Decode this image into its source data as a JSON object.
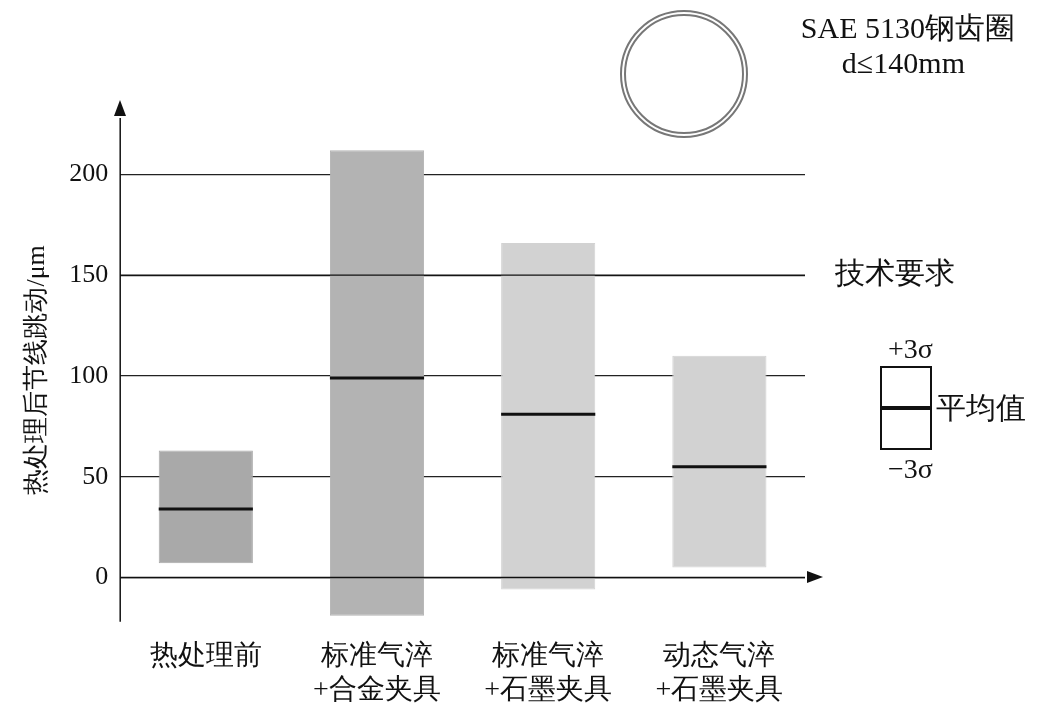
{
  "chart_data": {
    "type": "box",
    "ylabel": "热处理后节线跳动/μm",
    "categories": [
      "热处理前",
      "标准气淬\n+合金夹具",
      "标准气淬\n+石墨夹具",
      "动态气淬\n+石墨夹具"
    ],
    "boxes": [
      {
        "low": 7,
        "q1": 7,
        "median": 34,
        "q3": 63,
        "high": 63
      },
      {
        "low": -19,
        "q1": -19,
        "median": 99,
        "q3": 212,
        "high": 212
      },
      {
        "low": -6,
        "q1": -6,
        "median": 81,
        "q3": 166,
        "high": 166
      },
      {
        "low": 5,
        "q1": 5,
        "median": 55,
        "q3": 110,
        "high": 110
      }
    ],
    "colors": [
      "#a9a9a9",
      "#b3b3b3",
      "#d2d2d2",
      "#d2d2d2"
    ],
    "ylim": [
      -22,
      228
    ],
    "yticks": [
      0,
      50,
      100,
      150,
      200
    ],
    "grid": "y",
    "ref_lines": [
      {
        "axis": "y",
        "value": 150,
        "label": "技术要求"
      }
    ],
    "annotations": [
      "SAE 5130钢齿圈",
      "d≤140mm",
      "+3σ",
      "平均值",
      "−3σ"
    ]
  }
}
